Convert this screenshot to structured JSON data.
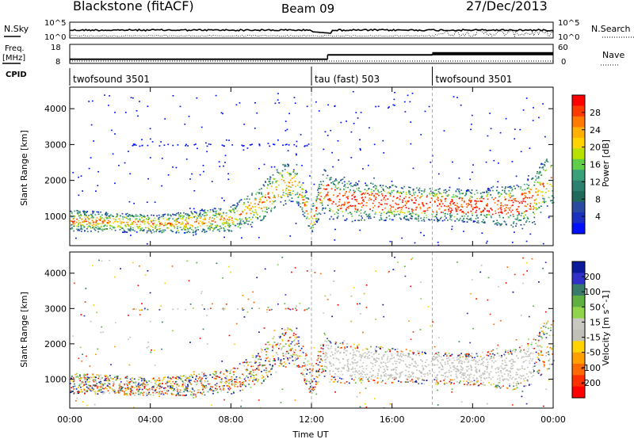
{
  "header": {
    "site": "Blackstone (fitACF)",
    "beam": "Beam 09",
    "date": "27/Dec/2013"
  },
  "panels": {
    "nsky_label": "N.Sky",
    "nsearch_label": "N.Search",
    "nsky_ticks": [
      "10^5",
      "10^0"
    ],
    "nsearch_ticks": [
      "10^5",
      "10^0"
    ],
    "freq_label_1": "Freq.",
    "freq_label_2": "[MHz]",
    "freq_ticks": [
      "18",
      "8"
    ],
    "nave_label": "Nave",
    "nave_ticks": [
      "60",
      "0"
    ],
    "cpid_label": "CPID",
    "cpid_segments": [
      {
        "name": "twofsound 3501",
        "start": 0,
        "end": 12
      },
      {
        "name": "tau (fast) 503",
        "start": 12,
        "end": 18
      },
      {
        "name": "twofsound 3501",
        "start": 18,
        "end": 24
      }
    ]
  },
  "power_colorbar": {
    "label": "Power [dB]",
    "ticks": [
      "28",
      "24",
      "20",
      "16",
      "12",
      "8",
      "4"
    ],
    "colors": [
      "#ff0000",
      "#ff3a00",
      "#ff7a00",
      "#ffb000",
      "#ffd400",
      "#b8e000",
      "#5fcf4a",
      "#3aa07a",
      "#2d8070",
      "#1f6a5a",
      "#2a4aa0",
      "#1a30c0",
      "#0010ff"
    ]
  },
  "velocity_colorbar": {
    "label": "Velocity [m s^-1]",
    "ticks": [
      "200",
      "100",
      "50",
      "15",
      "-15",
      "-50",
      "-100",
      "-200"
    ],
    "colors": [
      "#0a1a9a",
      "#3030c8",
      "#3a7a6a",
      "#5fb040",
      "#8fd44a",
      "#c8c8c0",
      "#c0c0b8",
      "#ffd400",
      "#ffa000",
      "#ff6a00",
      "#ff3000",
      "#ff0000"
    ]
  },
  "chart_data": {
    "type": "heatmap",
    "xlabel": "Time UT",
    "ylabel": "Slant Range [km]",
    "x_ticks": [
      "00:00",
      "04:00",
      "08:00",
      "12:00",
      "16:00",
      "20:00",
      "00:00"
    ],
    "y_ticks": [
      "1000",
      "2000",
      "3000",
      "4000"
    ],
    "xlim_hours": [
      0,
      24
    ],
    "ylim_km": [
      180,
      4600
    ],
    "dashed_lines_hours": [
      12,
      18
    ],
    "freq_mhz": [
      {
        "start": 0,
        "end": 12.8,
        "value": 10.2
      },
      {
        "start": 12.8,
        "end": 18,
        "value": 12.5
      },
      {
        "start": 18,
        "end": 24,
        "value": 13.1
      }
    ],
    "echo_band_center_km": [
      [
        0,
        900
      ],
      [
        2,
        850
      ],
      [
        4,
        800
      ],
      [
        6,
        850
      ],
      [
        8,
        950
      ],
      [
        9.5,
        1400
      ],
      [
        10.5,
        1900
      ],
      [
        11.2,
        1950
      ],
      [
        12,
        900
      ],
      [
        12.6,
        1800
      ],
      [
        13,
        1500
      ],
      [
        14,
        1450
      ],
      [
        16,
        1400
      ],
      [
        18,
        1350
      ],
      [
        20,
        1300
      ],
      [
        22,
        1300
      ],
      [
        23,
        1500
      ],
      [
        23.6,
        2000
      ]
    ],
    "echo_band_width_km": [
      [
        0,
        300
      ],
      [
        4,
        250
      ],
      [
        8,
        350
      ],
      [
        10.5,
        600
      ],
      [
        12,
        400
      ],
      [
        13,
        600
      ],
      [
        16,
        500
      ],
      [
        20,
        450
      ],
      [
        23.6,
        700
      ]
    ]
  }
}
